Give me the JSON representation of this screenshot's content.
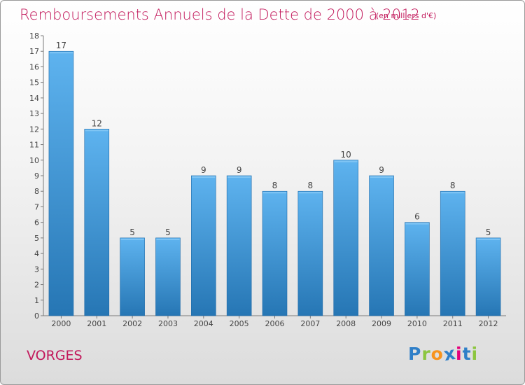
{
  "title": "Remboursements Annuels de la Dette de 2000 à 2012",
  "unit_note": "(en milliers d'€)",
  "commune": "VORGES",
  "logo": {
    "letters": [
      "P",
      "r",
      "o",
      "x",
      "i",
      "t",
      "i"
    ],
    "colors": [
      "#2f7fc8",
      "#8cc63f",
      "#f7941d",
      "#2f7fc8",
      "#e4007c",
      "#2f7fc8",
      "#8cc63f"
    ]
  },
  "colors": {
    "accent": "#c2185b",
    "bar_light": "#5eb3ef",
    "bar_dark": "#2676b4"
  },
  "chart_data": {
    "type": "bar",
    "title": "Remboursements Annuels de la Dette de 2000 à 2012",
    "xlabel": "",
    "ylabel": "",
    "categories": [
      "2000",
      "2001",
      "2002",
      "2003",
      "2004",
      "2005",
      "2006",
      "2007",
      "2008",
      "2009",
      "2010",
      "2011",
      "2012"
    ],
    "values": [
      17,
      12,
      5,
      5,
      9,
      9,
      8,
      8,
      10,
      9,
      6,
      8,
      5
    ],
    "ylim": [
      0,
      18
    ],
    "yticks": [
      0,
      1,
      2,
      3,
      4,
      5,
      6,
      7,
      8,
      9,
      10,
      11,
      12,
      13,
      14,
      15,
      16,
      17,
      18
    ],
    "grid": false
  }
}
